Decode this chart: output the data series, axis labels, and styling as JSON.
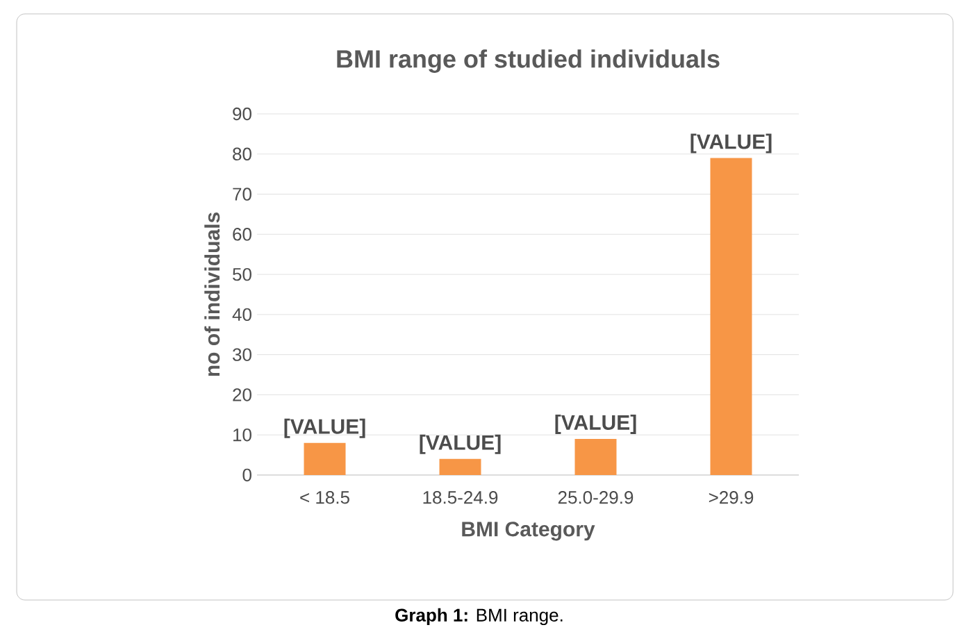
{
  "chart_data": {
    "type": "bar",
    "title": "BMI range of studied individuals",
    "xlabel": "BMI Category",
    "ylabel": "no of individuals",
    "categories": [
      "< 18.5",
      "18.5-24.9",
      "25.0-29.9",
      ">29.9"
    ],
    "values": [
      8,
      4,
      9,
      79
    ],
    "value_labels": [
      "[VALUE]",
      "[VALUE]",
      "[VALUE]",
      "[VALUE]"
    ],
    "color": "#f79646",
    "ylim": [
      0,
      90
    ],
    "yticks": [
      0,
      10,
      20,
      30,
      40,
      50,
      60,
      70,
      80,
      90
    ],
    "grid": "y",
    "annotations": [
      "**Graph 1:** BMI range."
    ]
  }
}
